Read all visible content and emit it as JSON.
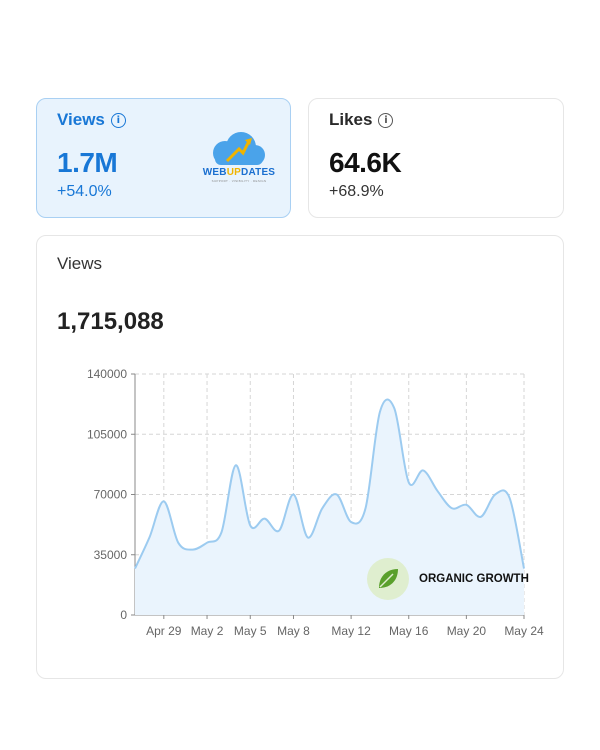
{
  "cards": {
    "views": {
      "label": "Views",
      "info_icon": "info-icon",
      "value": "1.7M",
      "change": "+54.0%"
    },
    "likes": {
      "label": "Likes",
      "info_icon": "info-icon",
      "value": "64.6K",
      "change": "+68.9%"
    }
  },
  "logo": {
    "text_part1": "WEB",
    "text_highlight": "UP",
    "text_part2": "DATES",
    "tagline": "SUPPORT · VISIBILITY · DESIGN",
    "icon": "cloud-arrow-logo"
  },
  "chart_section": {
    "title": "Views",
    "total": "1,715,088"
  },
  "badge": {
    "icon": "leaf-icon",
    "label": "ORGANIC GROWTH"
  },
  "colors": {
    "accent": "#1877d6",
    "views_card_bg": "#e8f3fd",
    "line": "#9ccbf0",
    "area": "#eaf4fd",
    "leaf": "#5aa02c"
  },
  "chart_data": {
    "type": "area",
    "x_tick_labels": [
      "Apr 29",
      "May 2",
      "May 5",
      "May 8",
      "May 12",
      "May 16",
      "May 20",
      "May 24"
    ],
    "y_tick_labels": [
      "0",
      "35000",
      "70000",
      "105000",
      "140000"
    ],
    "ylim": [
      0,
      140000
    ],
    "grid": true,
    "series": [
      {
        "x": [
          "Apr 27",
          "Apr 28",
          "Apr 29",
          "Apr 30",
          "May 1",
          "May 2",
          "May 3",
          "May 4",
          "May 5",
          "May 6",
          "May 7",
          "May 8",
          "May 9",
          "May 10",
          "May 11",
          "May 12",
          "May 13",
          "May 14",
          "May 15",
          "May 16",
          "May 17",
          "May 18",
          "May 19",
          "May 20",
          "May 21",
          "May 22",
          "May 23",
          "May 24"
        ],
        "y": [
          27000,
          45000,
          66000,
          42000,
          38000,
          42000,
          48000,
          87000,
          52000,
          56000,
          49000,
          70000,
          45000,
          62000,
          70000,
          54000,
          62000,
          118000,
          120000,
          77000,
          84000,
          72000,
          62000,
          64000,
          57000,
          70000,
          68000,
          27000
        ]
      }
    ]
  }
}
